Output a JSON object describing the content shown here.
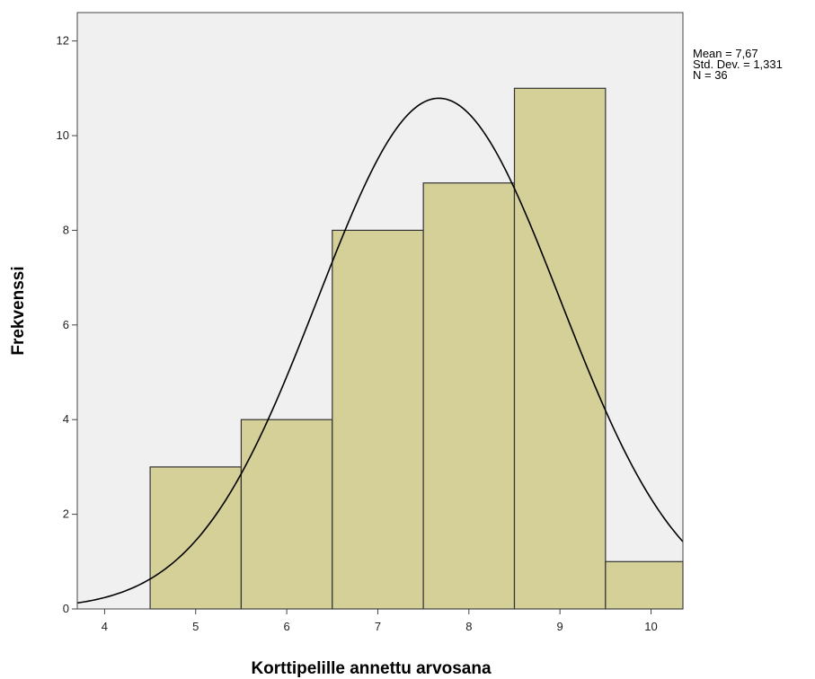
{
  "chart_data": {
    "type": "bar",
    "subtype": "histogram",
    "xlabel": "Korttipelille annettu arvosana",
    "ylabel": "Frekvenssi",
    "xlim": [
      3.7,
      10.35
    ],
    "ylim": [
      0,
      12.6
    ],
    "xticks": [
      "4",
      "5",
      "6",
      "7",
      "8",
      "9",
      "10"
    ],
    "yticks": [
      "0",
      "2",
      "4",
      "6",
      "8",
      "10",
      "12"
    ],
    "categories": [
      "5",
      "6",
      "7",
      "8",
      "9",
      "10"
    ],
    "bins": [
      {
        "label": "5",
        "from": 4.5,
        "to": 5.5,
        "value": 3
      },
      {
        "label": "6",
        "from": 5.5,
        "to": 6.5,
        "value": 4
      },
      {
        "label": "7",
        "from": 6.5,
        "to": 7.5,
        "value": 8
      },
      {
        "label": "8",
        "from": 7.5,
        "to": 8.5,
        "value": 9
      },
      {
        "label": "9",
        "from": 8.5,
        "to": 9.5,
        "value": 11
      },
      {
        "label": "10",
        "from": 9.5,
        "to": 10.35,
        "value": 1
      }
    ],
    "normal_curve": {
      "mean": 7.67,
      "std": 1.331,
      "n": 36,
      "bin_width": 1
    },
    "stats": {
      "mean": "Mean = 7,67",
      "std": "Std. Dev. = 1,331",
      "n": "N = 36"
    },
    "grid": false,
    "legend": "right",
    "colors": {
      "bar_fill": "#d5cf98",
      "bar_stroke": "#333333",
      "plot_background": "#f0f0f0",
      "curve": "#000000"
    }
  }
}
